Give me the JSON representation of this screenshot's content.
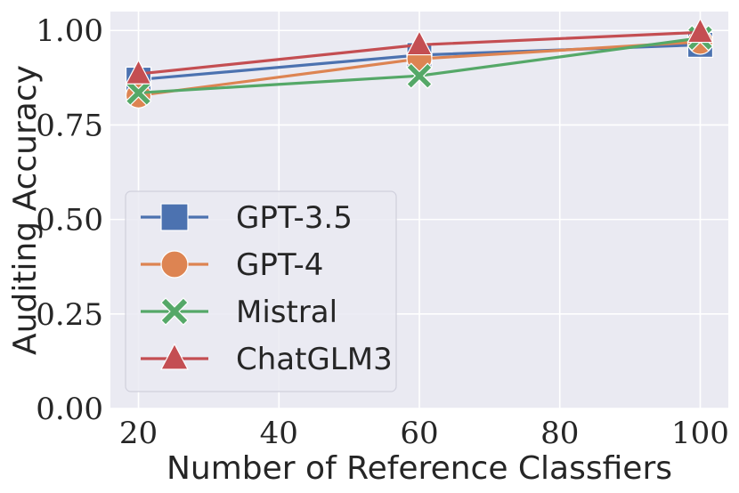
{
  "chart_data": {
    "type": "line",
    "title": "",
    "xlabel": "Number of Reference Classfiers",
    "ylabel": "Auditing Accuracy",
    "x": [
      20,
      60,
      100
    ],
    "xlim": [
      16,
      104
    ],
    "ylim": [
      0.0,
      1.05
    ],
    "xticks": [
      "20",
      "40",
      "60",
      "80",
      "100"
    ],
    "yticks": [
      "0.00",
      "0.25",
      "0.50",
      "0.75",
      "1.00"
    ],
    "grid": true,
    "legend_position": "lower-left",
    "series": [
      {
        "name": "GPT-3.5",
        "values": [
          0.87,
          0.935,
          0.962
        ],
        "color": "#4c72b0",
        "marker": "square"
      },
      {
        "name": "GPT-4",
        "values": [
          0.828,
          0.925,
          0.97
        ],
        "color": "#dd8452",
        "marker": "circle"
      },
      {
        "name": "Mistral",
        "values": [
          0.835,
          0.88,
          0.98
        ],
        "color": "#55a868",
        "marker": "x"
      },
      {
        "name": "ChatGLM3",
        "values": [
          0.885,
          0.962,
          0.995
        ],
        "color": "#c44e52",
        "marker": "triangle"
      }
    ],
    "background_color": "#eaeaf2",
    "grid_color": "#ffffff"
  }
}
